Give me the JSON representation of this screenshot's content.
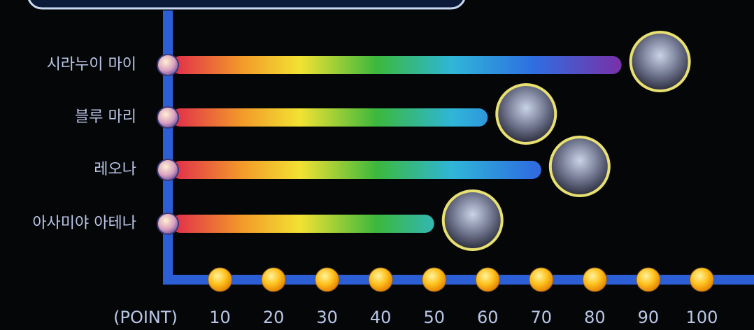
{
  "chart_data": {
    "type": "bar",
    "orientation": "horizontal",
    "categories": [
      "시라누이 마이",
      "블루 마리",
      "레오나",
      "아사미야 아테나"
    ],
    "values": [
      85,
      60,
      70,
      50
    ],
    "xlabel": "(POINT)",
    "xlim": [
      0,
      110
    ],
    "xticks": [
      10,
      20,
      30,
      40,
      50,
      60,
      70,
      80,
      90,
      100
    ]
  }
}
